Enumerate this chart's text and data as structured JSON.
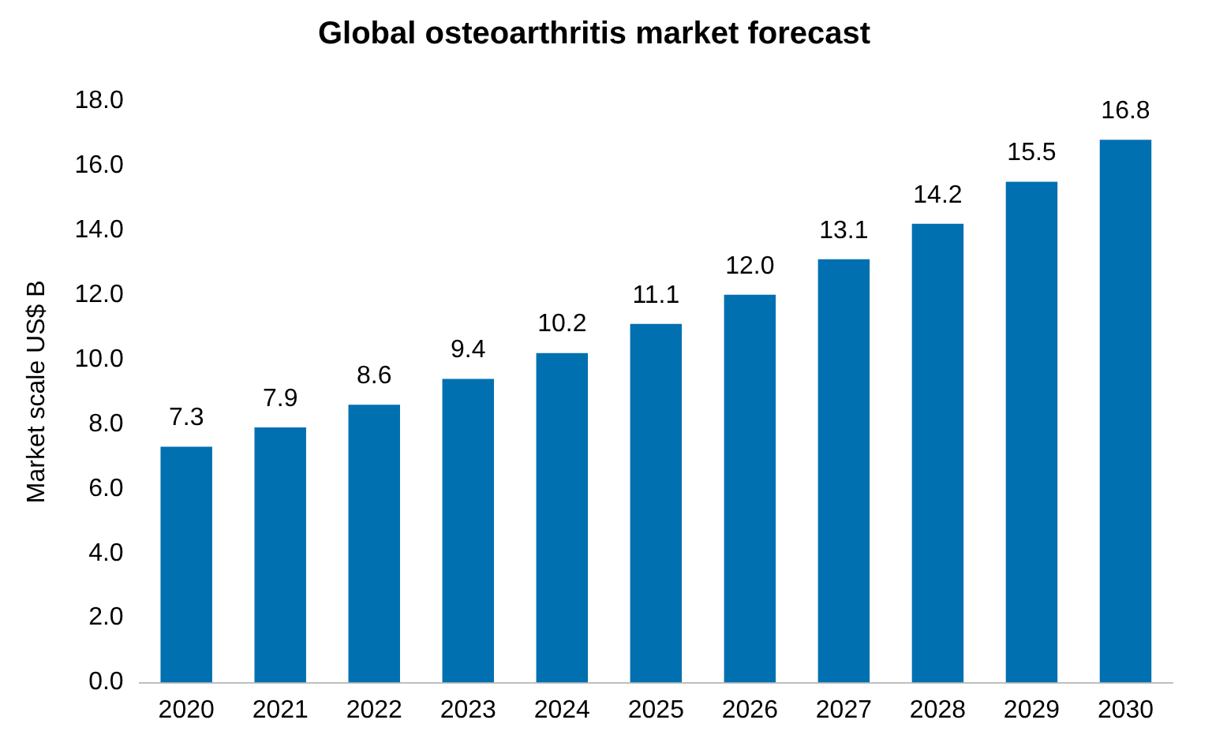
{
  "chart_data": {
    "type": "bar",
    "title": "Global osteoarthritis market forecast",
    "ylabel": "Market scale US$ B",
    "categories": [
      "2020",
      "2021",
      "2022",
      "2023",
      "2024",
      "2025",
      "2026",
      "2027",
      "2028",
      "2029",
      "2030"
    ],
    "values": [
      7.3,
      7.9,
      8.6,
      9.4,
      10.2,
      11.1,
      12.0,
      13.1,
      14.2,
      15.5,
      16.8
    ],
    "value_labels": [
      "7.3",
      "7.9",
      "8.6",
      "9.4",
      "10.2",
      "11.1",
      "12.0",
      "13.1",
      "14.2",
      "15.5",
      "16.8"
    ],
    "color": "#0070b0",
    "ylim": [
      0,
      18
    ],
    "yticks": [
      {
        "value": 0,
        "label": "0.0"
      },
      {
        "value": 2,
        "label": "2.0"
      },
      {
        "value": 4,
        "label": "4.0"
      },
      {
        "value": 6,
        "label": "6.0"
      },
      {
        "value": 8,
        "label": "8.0"
      },
      {
        "value": 10,
        "label": "10.0"
      },
      {
        "value": 12,
        "label": "12.0"
      },
      {
        "value": 14,
        "label": "14.0"
      },
      {
        "value": 16,
        "label": "16.0"
      },
      {
        "value": 18,
        "label": "18.0"
      }
    ],
    "grid": false,
    "legend": false
  }
}
